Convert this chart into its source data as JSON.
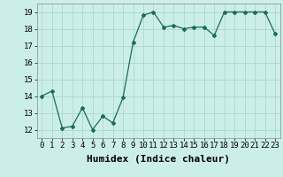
{
  "x": [
    0,
    1,
    2,
    3,
    4,
    5,
    6,
    7,
    8,
    9,
    10,
    11,
    12,
    13,
    14,
    15,
    16,
    17,
    18,
    19,
    20,
    21,
    22,
    23
  ],
  "y": [
    14.0,
    14.3,
    12.1,
    12.2,
    13.3,
    12.0,
    12.8,
    12.4,
    13.9,
    17.2,
    18.8,
    19.0,
    18.1,
    18.2,
    18.0,
    18.1,
    18.1,
    17.6,
    19.0,
    19.0,
    19.0,
    19.0,
    19.0,
    17.7
  ],
  "xlabel": "Humidex (Indice chaleur)",
  "ylim": [
    11.5,
    19.5
  ],
  "xlim": [
    -0.5,
    23.5
  ],
  "yticks": [
    12,
    13,
    14,
    15,
    16,
    17,
    18,
    19
  ],
  "xticks": [
    0,
    1,
    2,
    3,
    4,
    5,
    6,
    7,
    8,
    9,
    10,
    11,
    12,
    13,
    14,
    15,
    16,
    17,
    18,
    19,
    20,
    21,
    22,
    23
  ],
  "xtick_labels": [
    "0",
    "1",
    "2",
    "3",
    "4",
    "5",
    "6",
    "7",
    "8",
    "9",
    "10",
    "11",
    "12",
    "13",
    "14",
    "15",
    "16",
    "17",
    "18",
    "19",
    "20",
    "21",
    "22",
    "23"
  ],
  "line_color": "#1a6b5a",
  "marker": "D",
  "marker_size": 2,
  "bg_color": "#cceee8",
  "grid_color": "#aad8d0",
  "xlabel_fontsize": 8,
  "tick_fontsize": 6.5
}
